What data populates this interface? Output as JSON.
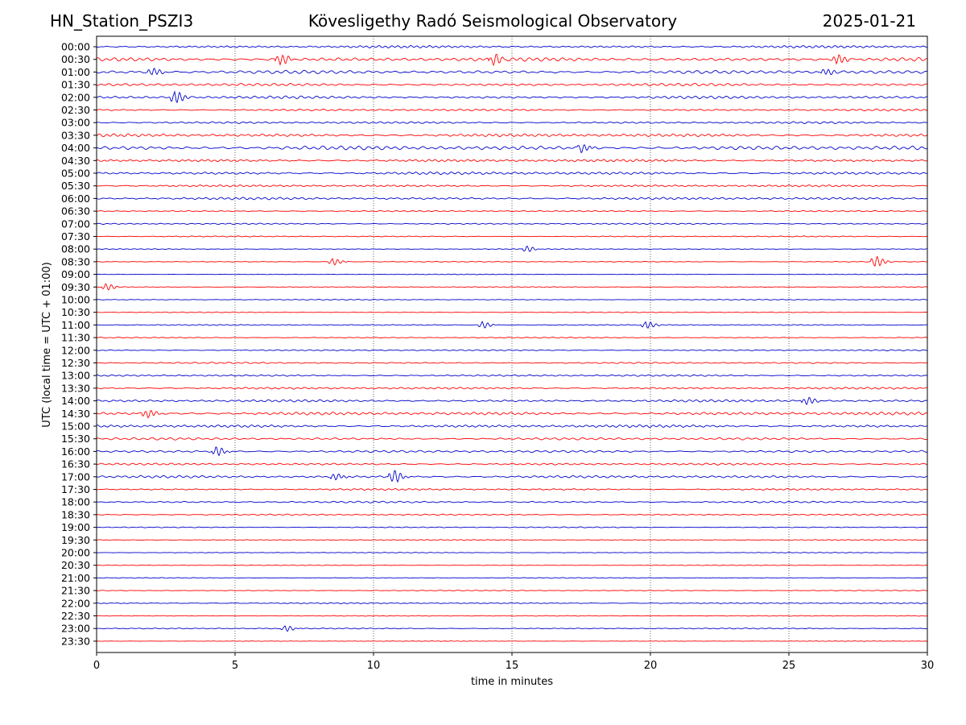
{
  "header": {
    "station": "HN_Station_PSZI3",
    "observatory": "Kövesligethy Radó Seismological Observatory",
    "date": "2025-01-21"
  },
  "chart_data": {
    "type": "line",
    "title": "Kövesligethy Radó Seismological Observatory",
    "xlabel": "time in minutes",
    "ylabel": "UTC (local time = UTC + 01:00)",
    "xlim": [
      0,
      30
    ],
    "x_ticks": [
      0,
      5,
      10,
      15,
      20,
      25,
      30
    ],
    "x_tick_labels": [
      "0",
      "5",
      "10",
      "15",
      "20",
      "25",
      "30"
    ],
    "grid": "vertical dotted at x ticks",
    "trace_rows": [
      "00:00",
      "00:30",
      "01:00",
      "01:30",
      "02:00",
      "02:30",
      "03:00",
      "03:30",
      "04:00",
      "04:30",
      "05:00",
      "05:30",
      "06:00",
      "06:30",
      "07:00",
      "07:30",
      "08:00",
      "08:30",
      "09:00",
      "09:30",
      "10:00",
      "10:30",
      "11:00",
      "11:30",
      "12:00",
      "12:30",
      "13:00",
      "13:30",
      "14:00",
      "14:30",
      "15:00",
      "15:30",
      "16:00",
      "16:30",
      "17:00",
      "17:30",
      "18:00",
      "18:30",
      "19:00",
      "19:30",
      "20:00",
      "20:30",
      "21:00",
      "21:30",
      "22:00",
      "22:30",
      "23:00",
      "23:30"
    ],
    "colors": {
      "hour_trace": "#0000cc",
      "half_hour_trace": "#ff0000",
      "axes": "#000000"
    },
    "noise_level": [
      0.35,
      0.55,
      0.5,
      0.4,
      0.4,
      0.3,
      0.3,
      0.45,
      0.6,
      0.4,
      0.4,
      0.3,
      0.35,
      0.2,
      0.2,
      0.15,
      0.12,
      0.12,
      0.1,
      0.12,
      0.12,
      0.12,
      0.15,
      0.15,
      0.18,
      0.22,
      0.25,
      0.3,
      0.35,
      0.45,
      0.4,
      0.35,
      0.35,
      0.3,
      0.35,
      0.25,
      0.25,
      0.2,
      0.15,
      0.15,
      0.1,
      0.1,
      0.12,
      0.12,
      0.18,
      0.12,
      0.15,
      0.08
    ],
    "events": [
      {
        "row": 1,
        "minute": 6.6,
        "amp": 1.0
      },
      {
        "row": 1,
        "minute": 14.3,
        "amp": 0.9
      },
      {
        "row": 1,
        "minute": 26.7,
        "amp": 0.9
      },
      {
        "row": 2,
        "minute": 2.0,
        "amp": 0.7
      },
      {
        "row": 2,
        "minute": 26.3,
        "amp": 0.6
      },
      {
        "row": 4,
        "minute": 2.8,
        "amp": 1.2
      },
      {
        "row": 8,
        "minute": 17.5,
        "amp": 0.7
      },
      {
        "row": 16,
        "minute": 15.5,
        "amp": 0.5
      },
      {
        "row": 17,
        "minute": 8.5,
        "amp": 0.6
      },
      {
        "row": 17,
        "minute": 28.1,
        "amp": 1.0
      },
      {
        "row": 19,
        "minute": 0.3,
        "amp": 0.6
      },
      {
        "row": 22,
        "minute": 13.9,
        "amp": 0.6
      },
      {
        "row": 22,
        "minute": 19.8,
        "amp": 0.7
      },
      {
        "row": 28,
        "minute": 25.6,
        "amp": 0.7
      },
      {
        "row": 29,
        "minute": 1.8,
        "amp": 0.8
      },
      {
        "row": 32,
        "minute": 4.3,
        "amp": 0.8
      },
      {
        "row": 34,
        "minute": 10.7,
        "amp": 1.2
      },
      {
        "row": 34,
        "minute": 8.6,
        "amp": 0.6
      },
      {
        "row": 46,
        "minute": 6.8,
        "amp": 0.5
      }
    ]
  }
}
